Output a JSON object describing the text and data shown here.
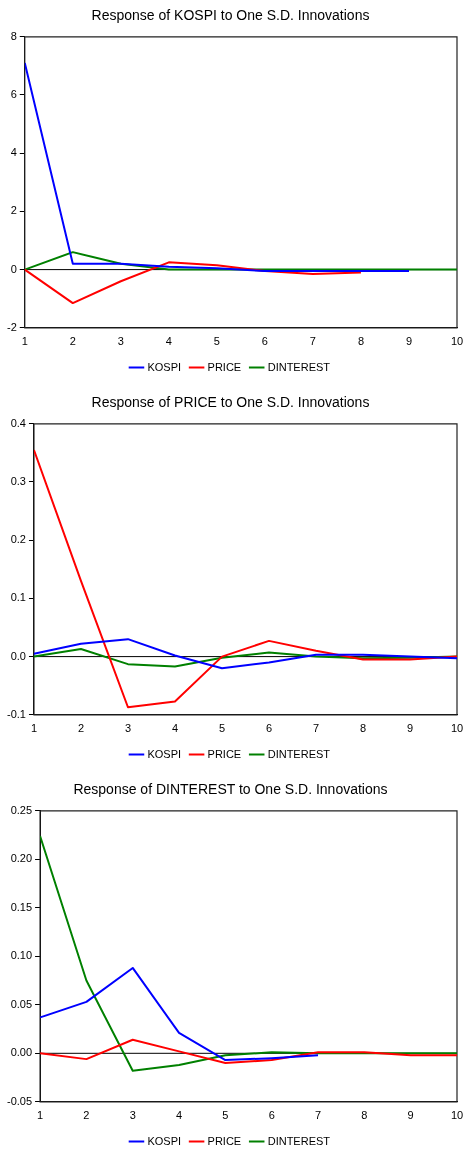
{
  "chart_data": [
    {
      "type": "line",
      "title": "Response of KOSPI to One S.D. Innovations",
      "x": [
        1,
        2,
        3,
        4,
        5,
        6,
        7,
        8,
        9,
        10
      ],
      "series": [
        {
          "name": "KOSPI",
          "color": "#0000ff",
          "values": [
            7.1,
            0.2,
            0.2,
            0.1,
            0.05,
            -0.05,
            -0.05,
            -0.05,
            -0.05,
            null
          ]
        },
        {
          "name": "PRICE",
          "color": "#ff0000",
          "values": [
            0,
            -1.15,
            -0.4,
            0.25,
            0.15,
            -0.05,
            -0.15,
            -0.1,
            null,
            null
          ]
        },
        {
          "name": "DINTEREST",
          "color": "#008000",
          "values": [
            0,
            0.6,
            0.2,
            0,
            0,
            0,
            0,
            0,
            0,
            0
          ]
        }
      ],
      "xlim": [
        1,
        10
      ],
      "xticks": [
        1,
        2,
        3,
        4,
        5,
        6,
        7,
        8,
        9,
        10
      ],
      "ylim": [
        -2,
        8
      ],
      "yticks": [
        -2,
        0,
        2,
        4,
        6,
        8
      ],
      "ref_lines": [
        {
          "axis": "y",
          "value": 0,
          "color": "#000000"
        }
      ],
      "legend": "bottom",
      "grid": false,
      "marker": "none",
      "line_style": "solid"
    },
    {
      "type": "line",
      "title": "Response of PRICE to One S.D. Innovations",
      "x": [
        1,
        2,
        3,
        4,
        5,
        6,
        7,
        8,
        9,
        10
      ],
      "series": [
        {
          "name": "KOSPI",
          "color": "#0000ff",
          "values": [
            0.005,
            0.022,
            0.03,
            0.002,
            -0.02,
            -0.01,
            0.003,
            0.003,
            0,
            -0.003
          ]
        },
        {
          "name": "PRICE",
          "color": "#ff0000",
          "values": [
            0.355,
            0.13,
            -0.087,
            -0.077,
            0,
            0.027,
            0.01,
            -0.005,
            -0.005,
            0
          ]
        },
        {
          "name": "DINTEREST",
          "color": "#008000",
          "values": [
            0,
            0.013,
            -0.013,
            -0.017,
            -0.002,
            0.007,
            0,
            -0.003,
            -0.002,
            0
          ]
        }
      ],
      "xlim": [
        1,
        10
      ],
      "xticks": [
        1,
        2,
        3,
        4,
        5,
        6,
        7,
        8,
        9,
        10
      ],
      "ylim": [
        -0.1,
        0.4
      ],
      "yticks": [
        {
          "value": -0.1,
          "label": "-0.1"
        },
        {
          "value": 0,
          "label": "0.0"
        },
        {
          "value": 0.1,
          "label": "0.1"
        },
        {
          "value": 0.2,
          "label": "0.2"
        },
        {
          "value": 0.3,
          "label": "0.3"
        },
        {
          "value": 0.4,
          "label": "0.4"
        }
      ],
      "ref_lines": [
        {
          "axis": "y",
          "value": 0,
          "color": "#000000"
        }
      ],
      "legend": "bottom",
      "grid": false,
      "marker": "none",
      "line_style": "solid"
    },
    {
      "type": "line",
      "title": "Response of DINTEREST to One S.D. Innovations",
      "x": [
        1,
        2,
        3,
        4,
        5,
        6,
        7,
        8,
        9,
        10
      ],
      "series": [
        {
          "name": "KOSPI",
          "color": "#0000ff",
          "values": [
            0.037,
            0.053,
            0.088,
            0.021,
            -0.007,
            -0.005,
            -0.002,
            null,
            null,
            null
          ]
        },
        {
          "name": "PRICE",
          "color": "#ff0000",
          "values": [
            0,
            -0.006,
            0.014,
            0.002,
            -0.01,
            -0.007,
            0.001,
            0.001,
            -0.002,
            -0.002
          ]
        },
        {
          "name": "DINTEREST",
          "color": "#008000",
          "values": [
            0.224,
            0.075,
            -0.018,
            -0.012,
            -0.002,
            0.001,
            0,
            0,
            0,
            0
          ]
        }
      ],
      "xlim": [
        1,
        10
      ],
      "xticks": [
        1,
        2,
        3,
        4,
        5,
        6,
        7,
        8,
        9,
        10
      ],
      "ylim": [
        -0.05,
        0.25
      ],
      "yticks": [
        {
          "value": -0.05,
          "label": "-0.05"
        },
        {
          "value": 0,
          "label": "0.00"
        },
        {
          "value": 0.05,
          "label": "0.05"
        },
        {
          "value": 0.1,
          "label": "0.10"
        },
        {
          "value": 0.15,
          "label": "0.15"
        },
        {
          "value": 0.2,
          "label": "0.20"
        },
        {
          "value": 0.25,
          "label": "0.25"
        }
      ],
      "ref_lines": [
        {
          "axis": "y",
          "value": 0,
          "color": "#000000"
        }
      ],
      "legend": "bottom",
      "grid": false,
      "marker": "none",
      "line_style": "solid"
    }
  ]
}
